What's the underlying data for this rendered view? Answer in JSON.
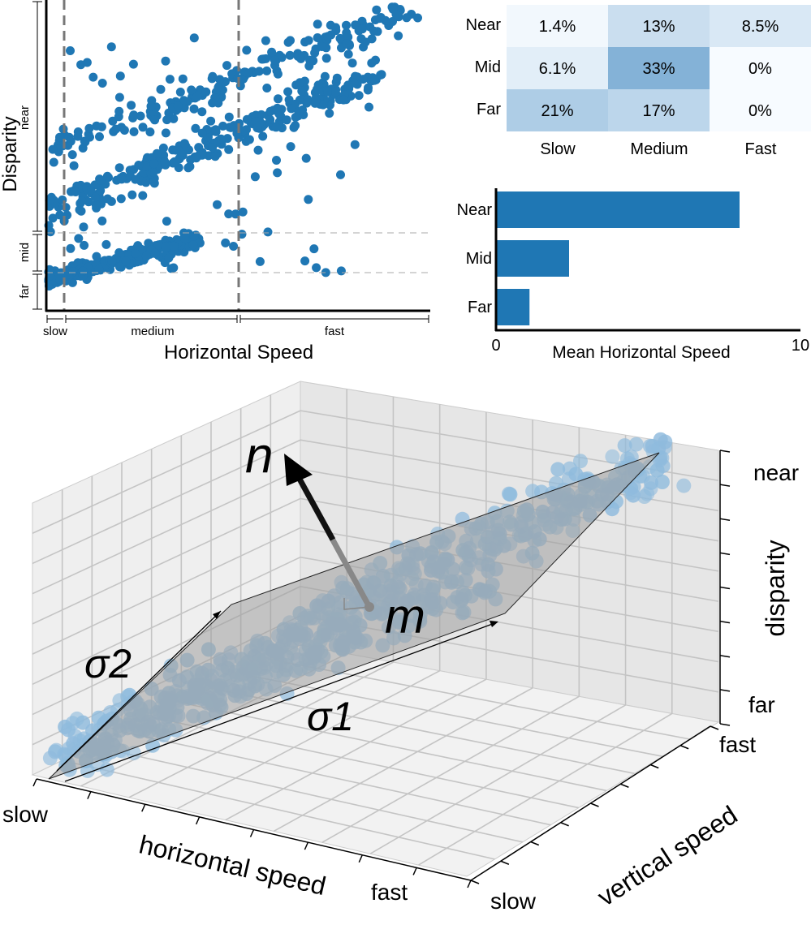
{
  "chart_data": [
    {
      "type": "scatter",
      "xlabel": "Horizontal Speed",
      "ylabel": "Disparity",
      "x_bins": [
        "slow",
        "medium",
        "fast"
      ],
      "y_bins": [
        "far",
        "mid",
        "near"
      ],
      "dashed_thresholds": {
        "x": [
          "slow|medium",
          "medium|fast"
        ],
        "y": [
          "far|mid",
          "mid|near"
        ]
      },
      "grid": false
    },
    {
      "type": "heatmap",
      "rows": [
        "Near",
        "Mid",
        "Far"
      ],
      "columns": [
        "Slow",
        "Medium",
        "Fast"
      ],
      "values": [
        [
          1.4,
          13,
          8.5
        ],
        [
          6.1,
          33,
          0
        ],
        [
          21,
          17,
          0
        ]
      ],
      "labels": [
        [
          "1.4%",
          "13%",
          "8.5%"
        ],
        [
          "6.1%",
          "33%",
          "0%"
        ],
        [
          "21%",
          "17%",
          "0%"
        ]
      ],
      "colormap": "Blues"
    },
    {
      "type": "bar",
      "orientation": "horizontal",
      "categories": [
        "Near",
        "Mid",
        "Far"
      ],
      "values": [
        8.0,
        2.4,
        1.1
      ],
      "xlabel": "Mean Horizontal Speed",
      "xlim": [
        0,
        10
      ],
      "xticks": [
        "0",
        "10"
      ],
      "color": "#1f77b4"
    },
    {
      "type": "scatter",
      "projection": "3d",
      "xlabel": "horizontal speed",
      "ylabel": "vertical speed",
      "zlabel": "disparity",
      "x_ticks": [
        "slow",
        "fast"
      ],
      "y_ticks": [
        "slow",
        "fast"
      ],
      "z_ticks": [
        "far",
        "near"
      ],
      "annotations": [
        "n",
        "m",
        "σ1",
        "σ2"
      ],
      "point_color": "#8fbbdd",
      "plane_color": "#a0a0a0"
    }
  ]
}
